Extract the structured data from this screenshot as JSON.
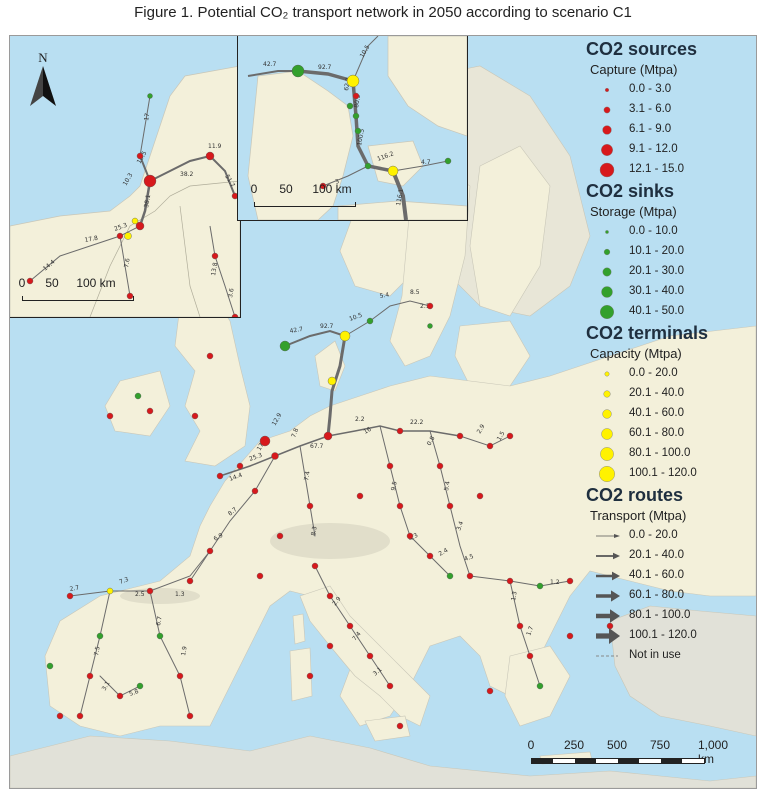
{
  "title": "Figure 1. Potential CO₂ transport network in 2050 according to scenario C1",
  "legend": {
    "sources_heading": "CO2 sources",
    "sources_sub": "Capture (Mtpa)",
    "sources": [
      "0.0 - 3.0",
      "3.1 - 6.0",
      "6.1 - 9.0",
      "9.1 - 12.0",
      "12.1 - 15.0"
    ],
    "sinks_heading": "CO2 sinks",
    "sinks_sub": "Storage (Mtpa)",
    "sinks": [
      "0.0 - 10.0",
      "10.1 - 20.0",
      "20.1 - 30.0",
      "30.1 - 40.0",
      "40.1 - 50.0"
    ],
    "terminals_heading": "CO2 terminals",
    "terminals_sub": "Capacity (Mtpa)",
    "terminals": [
      "0.0 - 20.0",
      "20.1 - 40.0",
      "40.1 - 60.0",
      "60.1 - 80.0",
      "80.1 - 100.0",
      "100.1 - 120.0"
    ],
    "routes_heading": "CO2 routes",
    "routes_sub": "Transport (Mtpa)",
    "routes": [
      "0.0 - 20.0",
      "20.1 - 40.0",
      "40.1 - 60.0",
      "60.1 - 80.0",
      "80.1 - 100.0",
      "100.1 - 120.0",
      "Not in use"
    ]
  },
  "colors": {
    "sea": "#b9dff2",
    "land": "#f3f0da",
    "land_outside": "#e1e1d8",
    "source": "#d7191c",
    "sink": "#33a02c",
    "terminal": "#fff200",
    "route": "#666666"
  },
  "main_scale": {
    "ticks": [
      "0",
      "250",
      "500",
      "750",
      "1,000 km"
    ]
  },
  "inset_nl_scale": {
    "ticks": [
      "0",
      "50",
      "100 km"
    ]
  },
  "inset_dk_scale": {
    "ticks": [
      "0",
      "50",
      "100 km"
    ]
  },
  "north": "N",
  "route_labels": {
    "inset_nl": [
      "17",
      "16.5",
      "38.2",
      "11.9",
      "51.7",
      "10.3",
      "38.1",
      "17.8",
      "25.3",
      "14.4",
      "7.6",
      "13.8",
      "3.6"
    ],
    "inset_dk": [
      "42.7",
      "92.7",
      "10.5",
      "80.9",
      "62.2",
      "100.5",
      "116.2",
      "4.7",
      "3",
      "116.1"
    ],
    "main": [
      "42.7",
      "92.7",
      "10.5",
      "5.4",
      "8.5",
      "2.1",
      "12.9",
      "7.8",
      "2.2",
      "16",
      "22.2",
      "2.9",
      "1.5",
      "25.3",
      "14.4",
      "17.8",
      "67.7",
      "7.4",
      "8.7",
      "6.9",
      "1.3",
      "2.5",
      "7.3",
      "6.7",
      "9.5",
      "5.4",
      "3.4",
      "4.5",
      "2.9",
      "7.4",
      "3.1",
      "1.3",
      "1.7",
      "1.2",
      "7.5",
      "3.1",
      "5.8",
      "2.7",
      "1.9",
      "4.3",
      "2.4",
      "8.3",
      "0.8"
    ]
  }
}
